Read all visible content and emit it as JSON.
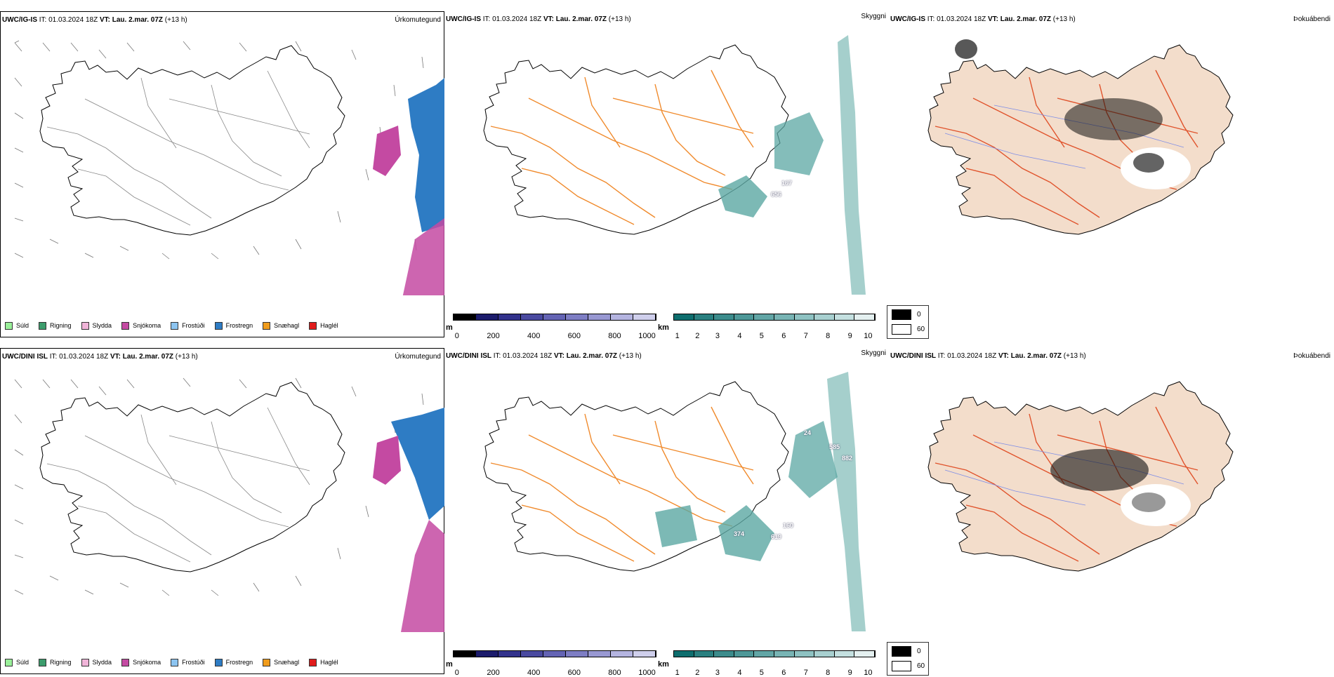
{
  "rows": [
    {
      "model": "UWC/IG-IS",
      "it_label": "IT:",
      "it": "01.03.2024 18Z",
      "vt_label": "VT:",
      "vt": "Lau. 2.mar. 07Z",
      "lead": "(+13 h)",
      "titles": {
        "precip": "Úrkomutegund",
        "visibility": "Skyggni",
        "cloud": "Þokuábendi"
      },
      "vis_values": [
        "167",
        "656"
      ]
    },
    {
      "model": "UWC/DINI ISL",
      "it_label": "IT:",
      "it": "01.03.2024 18Z",
      "vt_label": "VT:",
      "vt": "Lau. 2.mar. 07Z",
      "lead": "(+13 h)",
      "titles": {
        "precip": "Úrkomutegund",
        "visibility": "Skyggni",
        "cloud": "Þokuábendi"
      },
      "vis_values": [
        "24",
        "585",
        "882",
        "374",
        "160",
        "619"
      ]
    }
  ],
  "precip_legend": [
    {
      "label": "Súld",
      "color": "#9af09a"
    },
    {
      "label": "Rigning",
      "color": "#3c9c6c"
    },
    {
      "label": "Slydda",
      "color": "#f0b4d8"
    },
    {
      "label": "Snjókoma",
      "color": "#c44aa2"
    },
    {
      "label": "Frostúði",
      "color": "#8cc4f0"
    },
    {
      "label": "Frostregn",
      "color": "#2e7cc4"
    },
    {
      "label": "Snæhagl",
      "color": "#f09c1c"
    },
    {
      "label": "Haglél",
      "color": "#e01c1c"
    }
  ],
  "height_bar": {
    "unit": "m",
    "ticks": [
      "0",
      "200",
      "400",
      "600",
      "800",
      "1000"
    ],
    "colors": [
      "#000000",
      "#1c1c6c",
      "#32328c",
      "#4a4aa0",
      "#6464b4",
      "#7e7ec4",
      "#9898d2",
      "#b4b4e0",
      "#cfcfec"
    ]
  },
  "vis_bar": {
    "unit": "km",
    "ticks": [
      "1",
      "2",
      "3",
      "4",
      "5",
      "6",
      "7",
      "8",
      "9",
      "10"
    ],
    "colors": [
      "#0e6e6e",
      "#2a8080",
      "#3c8c8c",
      "#4e9898",
      "#62a6a6",
      "#78b4b4",
      "#8ec2c2",
      "#a8d0d0",
      "#c4e0e0",
      "#e4f0f0"
    ]
  },
  "cloud_legend": {
    "high": "0",
    "low": "60"
  },
  "colors": {
    "land_cloud": "#f3ddcb",
    "roads_orange": "#f08a2c",
    "roads_red": "#e0532c",
    "rivers": "#7f8ee6",
    "vis_teal": "#5ba7a3",
    "frostregn": "#2e7cc4",
    "snjokoma": "#c44aa2"
  }
}
